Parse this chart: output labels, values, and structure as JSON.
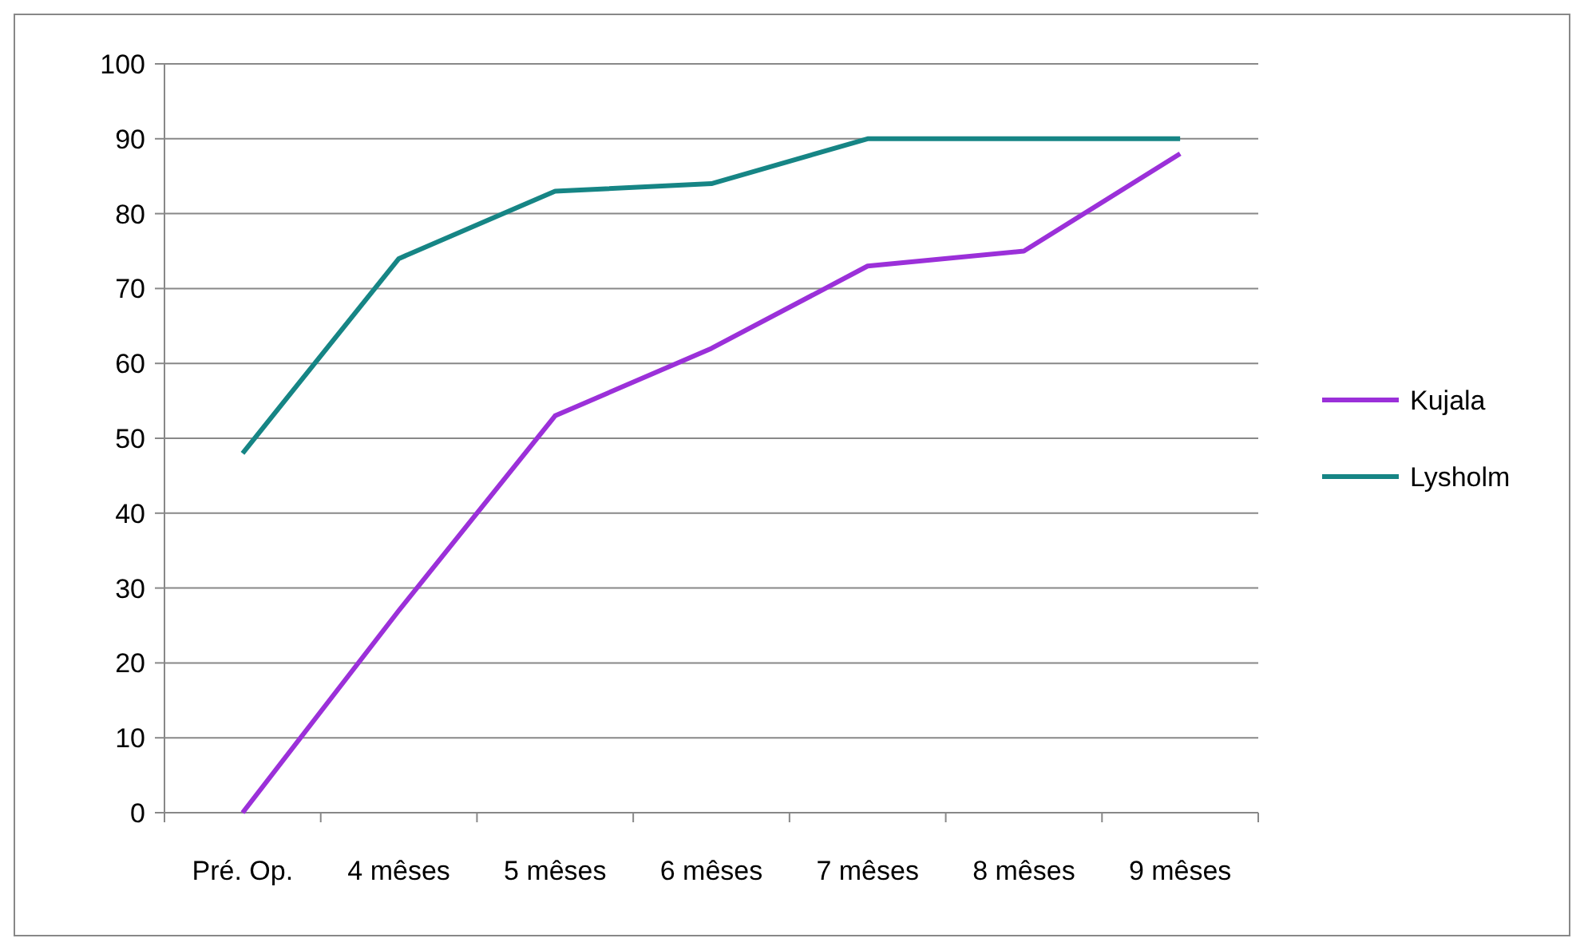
{
  "chart_data": {
    "type": "line",
    "categories": [
      "Pré. Op.",
      "4 mêses",
      "5 mêses",
      "6 mêses",
      "7 mêses",
      "8 mêses",
      "9 mêses"
    ],
    "series": [
      {
        "name": "Kujala",
        "color": "#9b30d9",
        "values": [
          0,
          27,
          53,
          62,
          73,
          75,
          88
        ]
      },
      {
        "name": "Lysholm",
        "color": "#168585",
        "values": [
          48,
          74,
          83,
          84,
          90,
          90,
          90
        ]
      }
    ],
    "ylim": [
      0,
      100
    ],
    "yticks": [
      0,
      10,
      20,
      30,
      40,
      50,
      60,
      70,
      80,
      90,
      100
    ],
    "grid": "y",
    "legend": "right",
    "marker": "none",
    "line_style": "solid"
  }
}
